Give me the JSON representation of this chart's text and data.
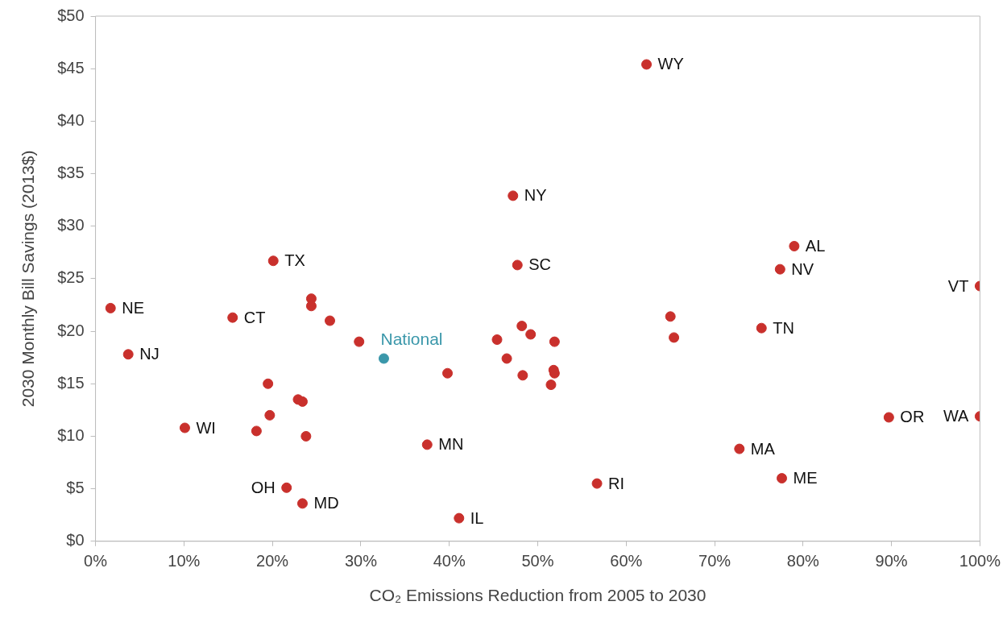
{
  "chart_data": {
    "type": "scatter",
    "xlabel": "CO₂ Emissions Reduction from 2005 to 2030",
    "ylabel": "2030 Monthly Bill Savings (2013$)",
    "xlim": [
      0,
      100
    ],
    "ylim": [
      0,
      50
    ],
    "xticks": [
      {
        "value": 0,
        "label": "0%"
      },
      {
        "value": 10,
        "label": "10%"
      },
      {
        "value": 20,
        "label": "20%"
      },
      {
        "value": 30,
        "label": "30%"
      },
      {
        "value": 40,
        "label": "40%"
      },
      {
        "value": 50,
        "label": "50%"
      },
      {
        "value": 60,
        "label": "60%"
      },
      {
        "value": 70,
        "label": "70%"
      },
      {
        "value": 80,
        "label": "80%"
      },
      {
        "value": 90,
        "label": "90%"
      },
      {
        "value": 100,
        "label": "100%"
      }
    ],
    "yticks": [
      {
        "value": 0,
        "label": "$0"
      },
      {
        "value": 5,
        "label": "$5"
      },
      {
        "value": 10,
        "label": "$10"
      },
      {
        "value": 15,
        "label": "$15"
      },
      {
        "value": 20,
        "label": "$20"
      },
      {
        "value": 25,
        "label": "$25"
      },
      {
        "value": 30,
        "label": "$30"
      },
      {
        "value": 35,
        "label": "$35"
      },
      {
        "value": 40,
        "label": "$40"
      },
      {
        "value": 45,
        "label": "$45"
      },
      {
        "value": 50,
        "label": "$50"
      }
    ],
    "grid": false,
    "legend": false,
    "marker": "circle",
    "series": [
      {
        "color": "#c9302c",
        "x": [
          1.7,
          3.7,
          10.1,
          15.5,
          20.1,
          19.5,
          19.7,
          18.2,
          22.9,
          23.4,
          23.8,
          21.6,
          23.4,
          24.4,
          24.4,
          26.5,
          29.8,
          39.8,
          37.5,
          41.1,
          45.4,
          46.5,
          48.2,
          49.2,
          48.3,
          51.9,
          51.8,
          51.9,
          51.5,
          47.2,
          47.7,
          56.7,
          62.3,
          65.0,
          65.4,
          72.8,
          75.3,
          77.4,
          77.6,
          79.0,
          89.7,
          100,
          100
        ],
        "values": [
          22.2,
          17.8,
          10.8,
          21.3,
          26.7,
          15.0,
          12.0,
          10.5,
          13.5,
          13.3,
          10.0,
          5.1,
          3.6,
          23.1,
          22.4,
          21.0,
          19.0,
          16.0,
          9.2,
          2.2,
          19.2,
          17.4,
          20.5,
          19.7,
          15.8,
          19.0,
          16.3,
          16.0,
          14.9,
          32.9,
          26.3,
          5.5,
          45.4,
          21.4,
          19.4,
          8.8,
          20.3,
          25.9,
          6.0,
          28.1,
          11.8,
          24.3,
          11.9
        ]
      },
      {
        "name": "National",
        "color": "#3a97aa",
        "x": [
          32.6
        ],
        "values": [
          17.4
        ]
      }
    ],
    "annotations": [
      {
        "text": "NE",
        "x": 1.7,
        "y": 22.2
      },
      {
        "text": "NJ",
        "x": 3.7,
        "y": 17.8
      },
      {
        "text": "WI",
        "x": 10.1,
        "y": 10.8
      },
      {
        "text": "CT",
        "x": 15.5,
        "y": 21.3
      },
      {
        "text": "TX",
        "x": 20.1,
        "y": 26.7
      },
      {
        "text": "OH",
        "x": 21.6,
        "y": 5.1
      },
      {
        "text": "MD",
        "x": 23.4,
        "y": 3.6
      },
      {
        "text": "MN",
        "x": 37.5,
        "y": 9.2
      },
      {
        "text": "IL",
        "x": 41.1,
        "y": 2.2
      },
      {
        "text": "NY",
        "x": 47.2,
        "y": 32.9
      },
      {
        "text": "SC",
        "x": 47.7,
        "y": 26.3
      },
      {
        "text": "RI",
        "x": 56.7,
        "y": 5.5
      },
      {
        "text": "WY",
        "x": 62.3,
        "y": 45.4
      },
      {
        "text": "MA",
        "x": 72.8,
        "y": 8.8
      },
      {
        "text": "TN",
        "x": 75.3,
        "y": 20.3
      },
      {
        "text": "NV",
        "x": 77.4,
        "y": 25.9
      },
      {
        "text": "ME",
        "x": 77.6,
        "y": 6.0
      },
      {
        "text": "AL",
        "x": 79.0,
        "y": 28.1
      },
      {
        "text": "OR",
        "x": 89.7,
        "y": 11.8
      },
      {
        "text": "VT",
        "x": 100,
        "y": 24.3
      },
      {
        "text": "WA",
        "x": 100,
        "y": 11.9
      }
    ]
  }
}
